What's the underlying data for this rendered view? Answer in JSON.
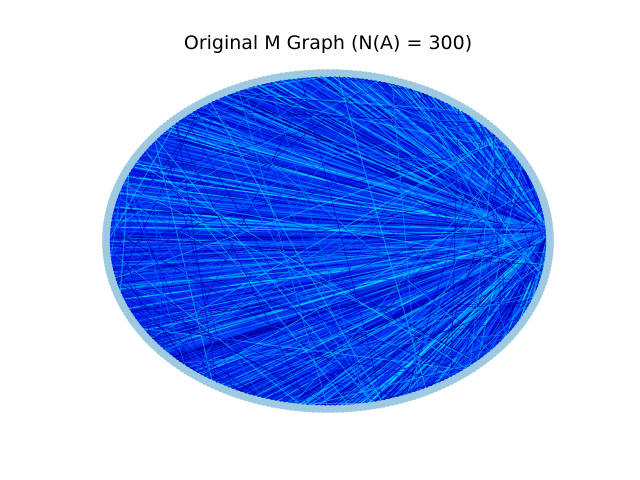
{
  "figure": {
    "title": "Original M Graph (N(A) = 300)"
  },
  "graph": {
    "node_count": 300,
    "layout": "circular",
    "node_color": "#9ecae1",
    "edge_colors": [
      "#0000c8",
      "#0018e0",
      "#0030f0",
      "#0048ff",
      "#0070ff",
      "#00a0ff",
      "#00d8ff",
      "#0000a0"
    ],
    "background": "#ffffff"
  }
}
